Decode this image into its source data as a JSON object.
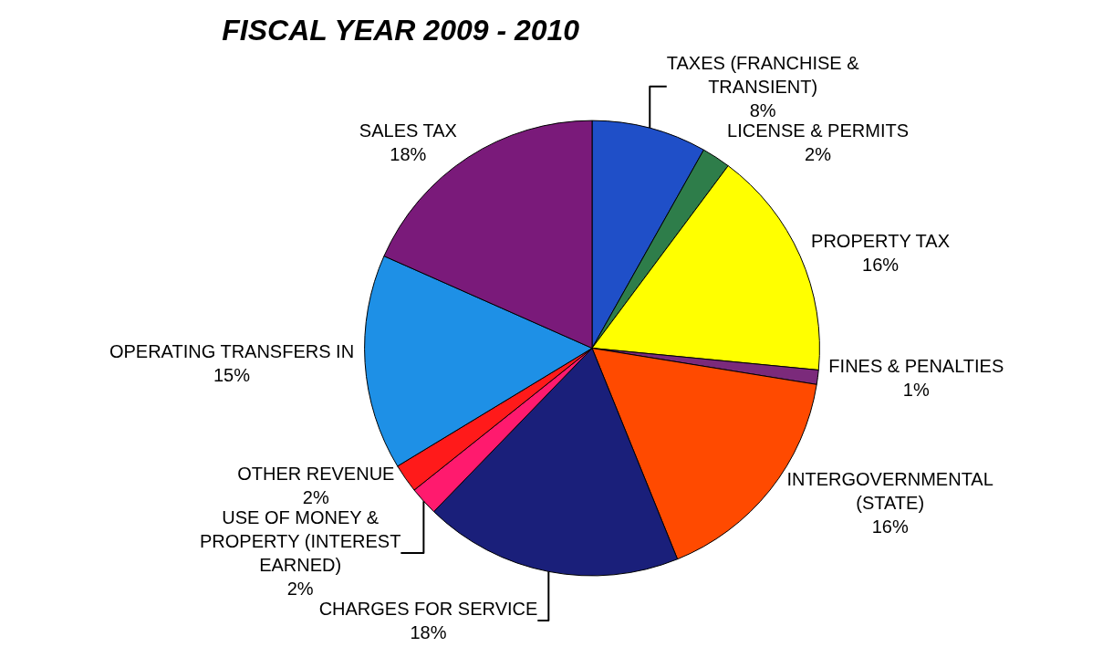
{
  "chart_data": {
    "type": "pie",
    "title": "FISCAL YEAR 2009 - 2010",
    "categories": [
      "TAXES (FRANCHISE & TRANSIENT)",
      "LICENSE & PERMITS",
      "PROPERTY TAX",
      "FINES & PENALTIES",
      "INTERGOVERNMENTAL (STATE)",
      "CHARGES FOR SERVICE",
      "USE OF MONEY & PROPERTY (INTEREST EARNED)",
      "OTHER REVENUE",
      "OPERATING TRANSFERS IN",
      "SALES TAX"
    ],
    "values": [
      8,
      2,
      16,
      1,
      16,
      18,
      2,
      2,
      15,
      18
    ],
    "value_labels": [
      "8%",
      "2%",
      "16%",
      "1%",
      "16%",
      "18%",
      "2%",
      "2%",
      "15%",
      "18%"
    ],
    "colors": [
      "#1f4fc8",
      "#2e7d4a",
      "#ffff00",
      "#7b2a7b",
      "#ff4a00",
      "#1a1f7a",
      "#ff1a6e",
      "#ff1a1a",
      "#1e90e6",
      "#7a1a7a"
    ],
    "legend": false
  }
}
